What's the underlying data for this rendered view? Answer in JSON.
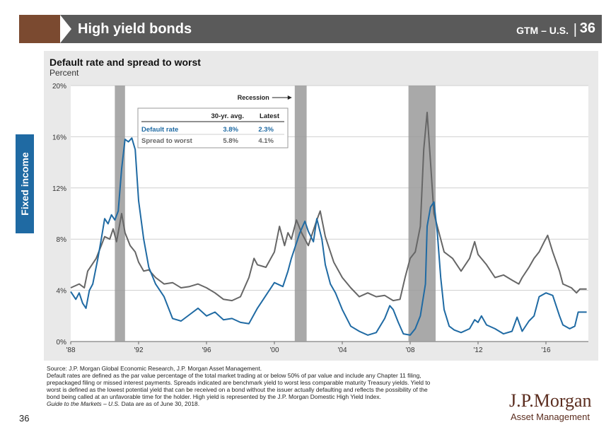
{
  "header": {
    "title": "High yield bonds",
    "code": "GTM – U.S.",
    "separator": "|",
    "page": "36",
    "accent_color": "#7b4a30",
    "bar_color": "#5a5a5a"
  },
  "sidebar": {
    "label": "Fixed income",
    "color": "#1f6aa3"
  },
  "chart_data": {
    "type": "line",
    "title": "Default rate and spread to worst",
    "ylabel": "Percent",
    "xlim": [
      1988,
      2018.5
    ],
    "ylim": [
      0,
      20
    ],
    "yticks": [
      0,
      4,
      8,
      12,
      16,
      20
    ],
    "ytick_labels": [
      "0%",
      "4%",
      "8%",
      "12%",
      "16%",
      "20%"
    ],
    "xticks": [
      1988,
      1992,
      1996,
      2000,
      2004,
      2008,
      2012,
      2016
    ],
    "xtick_labels": [
      "'88",
      "'92",
      "'96",
      "'00",
      "'04",
      "'08",
      "'12",
      "'16"
    ],
    "recessions": [
      [
        1990.6,
        1991.2
      ],
      [
        2001.2,
        2001.9
      ],
      [
        2007.9,
        2009.5
      ]
    ],
    "recession_label": "Recession",
    "table": {
      "headers": [
        "",
        "30-yr. avg.",
        "Latest"
      ],
      "rows": [
        {
          "label": "Default rate",
          "avg": "3.8%",
          "latest": "2.3%",
          "color": "#1f6aa3"
        },
        {
          "label": "Spread to worst",
          "avg": "5.8%",
          "latest": "4.1%",
          "color": "#666666"
        }
      ]
    },
    "series": [
      {
        "name": "Default rate",
        "color": "#1f6aa3",
        "points": [
          [
            1988,
            3.9
          ],
          [
            1988.3,
            3.3
          ],
          [
            1988.5,
            3.8
          ],
          [
            1988.7,
            3.0
          ],
          [
            1988.9,
            2.6
          ],
          [
            1989.1,
            4.0
          ],
          [
            1989.3,
            4.5
          ],
          [
            1989.6,
            6.5
          ],
          [
            1989.8,
            8.0
          ],
          [
            1990,
            9.6
          ],
          [
            1990.2,
            9.2
          ],
          [
            1990.4,
            9.9
          ],
          [
            1990.6,
            9.5
          ],
          [
            1990.8,
            10.2
          ],
          [
            1991.0,
            13.5
          ],
          [
            1991.2,
            15.8
          ],
          [
            1991.4,
            15.6
          ],
          [
            1991.6,
            15.9
          ],
          [
            1991.8,
            15.0
          ],
          [
            1992.0,
            11.0
          ],
          [
            1992.3,
            8.0
          ],
          [
            1992.6,
            5.8
          ],
          [
            1993.0,
            4.5
          ],
          [
            1993.5,
            3.5
          ],
          [
            1994.0,
            1.8
          ],
          [
            1994.5,
            1.6
          ],
          [
            1995.0,
            2.1
          ],
          [
            1995.5,
            2.6
          ],
          [
            1996.0,
            2.0
          ],
          [
            1996.5,
            2.3
          ],
          [
            1997.0,
            1.7
          ],
          [
            1997.5,
            1.8
          ],
          [
            1998.0,
            1.5
          ],
          [
            1998.5,
            1.4
          ],
          [
            1999.0,
            2.6
          ],
          [
            1999.5,
            3.6
          ],
          [
            2000.0,
            4.6
          ],
          [
            2000.5,
            4.3
          ],
          [
            2000.8,
            5.5
          ],
          [
            2001.0,
            6.5
          ],
          [
            2001.5,
            8.5
          ],
          [
            2001.8,
            9.4
          ],
          [
            2002.0,
            8.6
          ],
          [
            2002.3,
            7.8
          ],
          [
            2002.5,
            9.6
          ],
          [
            2002.8,
            8.0
          ],
          [
            2003.0,
            6.0
          ],
          [
            2003.3,
            4.5
          ],
          [
            2003.6,
            3.8
          ],
          [
            2004.0,
            2.5
          ],
          [
            2004.5,
            1.2
          ],
          [
            2005.0,
            0.8
          ],
          [
            2005.5,
            0.5
          ],
          [
            2006.0,
            0.7
          ],
          [
            2006.5,
            1.8
          ],
          [
            2006.8,
            2.8
          ],
          [
            2007.0,
            2.5
          ],
          [
            2007.3,
            1.5
          ],
          [
            2007.6,
            0.6
          ],
          [
            2008.0,
            0.5
          ],
          [
            2008.3,
            1.0
          ],
          [
            2008.6,
            2.0
          ],
          [
            2008.9,
            4.5
          ],
          [
            2009.0,
            9.0
          ],
          [
            2009.2,
            10.5
          ],
          [
            2009.4,
            10.9
          ],
          [
            2009.6,
            8.5
          ],
          [
            2009.8,
            5.0
          ],
          [
            2010.0,
            2.5
          ],
          [
            2010.3,
            1.2
          ],
          [
            2010.6,
            0.9
          ],
          [
            2011.0,
            0.7
          ],
          [
            2011.5,
            1.0
          ],
          [
            2011.8,
            1.7
          ],
          [
            2012.0,
            1.5
          ],
          [
            2012.2,
            2.0
          ],
          [
            2012.5,
            1.3
          ],
          [
            2013.0,
            1.0
          ],
          [
            2013.5,
            0.6
          ],
          [
            2014.0,
            0.8
          ],
          [
            2014.3,
            1.9
          ],
          [
            2014.6,
            0.8
          ],
          [
            2015.0,
            1.6
          ],
          [
            2015.3,
            2.0
          ],
          [
            2015.6,
            3.5
          ],
          [
            2016.0,
            3.8
          ],
          [
            2016.4,
            3.6
          ],
          [
            2016.8,
            2.0
          ],
          [
            2017.0,
            1.3
          ],
          [
            2017.4,
            1.0
          ],
          [
            2017.7,
            1.2
          ],
          [
            2017.9,
            2.3
          ],
          [
            2018.4,
            2.3
          ]
        ]
      },
      {
        "name": "Spread to worst",
        "color": "#666666",
        "points": [
          [
            1988,
            4.2
          ],
          [
            1988.5,
            4.5
          ],
          [
            1988.8,
            4.2
          ],
          [
            1989.0,
            5.5
          ],
          [
            1989.5,
            6.5
          ],
          [
            1989.8,
            7.5
          ],
          [
            1990.0,
            8.2
          ],
          [
            1990.3,
            8.0
          ],
          [
            1990.5,
            8.8
          ],
          [
            1990.7,
            7.8
          ],
          [
            1991.0,
            10.0
          ],
          [
            1991.2,
            8.5
          ],
          [
            1991.5,
            7.5
          ],
          [
            1991.8,
            7.0
          ],
          [
            1992.0,
            6.2
          ],
          [
            1992.3,
            5.5
          ],
          [
            1992.6,
            5.6
          ],
          [
            1993.0,
            5.0
          ],
          [
            1993.5,
            4.5
          ],
          [
            1994.0,
            4.6
          ],
          [
            1994.5,
            4.2
          ],
          [
            1995.0,
            4.3
          ],
          [
            1995.5,
            4.5
          ],
          [
            1996.0,
            4.2
          ],
          [
            1996.5,
            3.8
          ],
          [
            1997.0,
            3.3
          ],
          [
            1997.5,
            3.2
          ],
          [
            1998.0,
            3.5
          ],
          [
            1998.5,
            5.0
          ],
          [
            1998.8,
            6.5
          ],
          [
            1999.0,
            6.0
          ],
          [
            1999.5,
            5.8
          ],
          [
            2000.0,
            7.0
          ],
          [
            2000.3,
            9.0
          ],
          [
            2000.6,
            7.5
          ],
          [
            2000.8,
            8.5
          ],
          [
            2001.0,
            8.0
          ],
          [
            2001.3,
            9.5
          ],
          [
            2001.6,
            8.5
          ],
          [
            2002.0,
            7.5
          ],
          [
            2002.5,
            9.5
          ],
          [
            2002.7,
            10.2
          ],
          [
            2003.0,
            8.2
          ],
          [
            2003.5,
            6.2
          ],
          [
            2004.0,
            5.0
          ],
          [
            2004.5,
            4.2
          ],
          [
            2005.0,
            3.5
          ],
          [
            2005.5,
            3.8
          ],
          [
            2006.0,
            3.5
          ],
          [
            2006.5,
            3.6
          ],
          [
            2007.0,
            3.2
          ],
          [
            2007.4,
            3.3
          ],
          [
            2007.7,
            5.0
          ],
          [
            2008.0,
            6.5
          ],
          [
            2008.3,
            7.0
          ],
          [
            2008.6,
            9.0
          ],
          [
            2008.8,
            15.0
          ],
          [
            2009.0,
            17.9
          ],
          [
            2009.2,
            14.0
          ],
          [
            2009.4,
            10.0
          ],
          [
            2009.7,
            8.5
          ],
          [
            2010.0,
            7.0
          ],
          [
            2010.5,
            6.5
          ],
          [
            2011.0,
            5.5
          ],
          [
            2011.5,
            6.5
          ],
          [
            2011.8,
            7.8
          ],
          [
            2012.0,
            6.8
          ],
          [
            2012.5,
            6.0
          ],
          [
            2013.0,
            5.0
          ],
          [
            2013.5,
            5.2
          ],
          [
            2014.0,
            4.8
          ],
          [
            2014.4,
            4.5
          ],
          [
            2014.6,
            5.0
          ],
          [
            2015.0,
            5.8
          ],
          [
            2015.3,
            6.5
          ],
          [
            2015.6,
            7.0
          ],
          [
            2015.9,
            7.8
          ],
          [
            2016.1,
            8.3
          ],
          [
            2016.4,
            7.0
          ],
          [
            2016.8,
            5.5
          ],
          [
            2017.0,
            4.5
          ],
          [
            2017.5,
            4.2
          ],
          [
            2017.8,
            3.8
          ],
          [
            2018.0,
            4.1
          ],
          [
            2018.4,
            4.1
          ]
        ]
      }
    ]
  },
  "footnote": {
    "source": "Source: J.P. Morgan Global Economic Research, J.P. Morgan Asset Management.",
    "line2": "Default rates are defined as the par value percentage of the total market trading at or below 50% of par value and include any Chapter 11 filing,",
    "line3": "prepackaged filing or missed interest payments. Spreads indicated are benchmark yield to worst less comparable maturity Treasury yields. Yield to",
    "line4": "worst is defined as the lowest potential yield that can be received on a bond without the issuer actually defaulting and reflects the possibility of the",
    "line5": "bond being called at an unfavorable time for the holder. High yield is represented by the J.P. Morgan Domestic High Yield Index.",
    "guide_italic": "Guide to the Markets – U.S.",
    "guide_rest": " Data are as of June 30, 2018."
  },
  "page_number": "36",
  "logo": {
    "name": "J.P.Morgan",
    "sub": "Asset Management",
    "color": "#5b2d1f"
  }
}
